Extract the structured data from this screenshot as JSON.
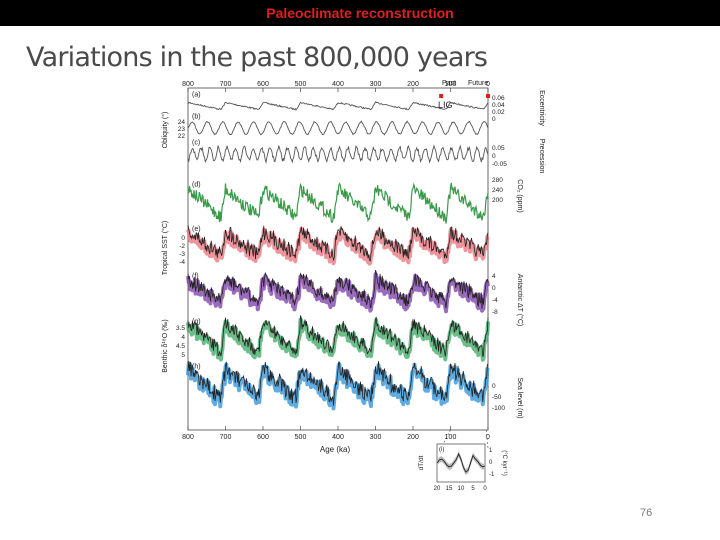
{
  "header": {
    "title": "Paleoclimate reconstruction"
  },
  "slide": {
    "headline": "Variations in the past 800,000 years",
    "number": "76"
  },
  "chart_data": {
    "type": "line",
    "x_axis": {
      "label": "Age (ka)",
      "range": [
        800,
        0
      ],
      "ticks": [
        "800",
        "700",
        "600",
        "500",
        "400",
        "300",
        "200",
        "100",
        "0"
      ]
    },
    "top_annotations": {
      "past": "Past",
      "future": "Future",
      "lig": "LIG"
    },
    "panel_labels": [
      "(a)",
      "(b)",
      "(c)",
      "(d)",
      "(e)",
      "(f)",
      "(g)",
      "(h)"
    ],
    "left_axis_labels": {
      "obliquity": "Obliquity (°)",
      "tropical_sst": "Tropical SST (°C)",
      "benthic": "Benthic δ¹⁸O (‰)"
    },
    "right_axis_labels": {
      "eccentricity": "Eccentricity",
      "precession": "Precession",
      "co2": "CO₂ (ppm)",
      "antarctic": "Antarctic ΔT (°C)",
      "sea_level": "Sea level (m)"
    },
    "left_ticks": {
      "obliquity": [
        "24",
        "23",
        "22"
      ],
      "tropical_sst": [
        "0",
        "-2",
        "-3",
        "-4"
      ],
      "benthic": [
        "3.5",
        "4",
        "4.5",
        "5"
      ]
    },
    "right_ticks": {
      "eccentricity": [
        "0.06",
        "0.04",
        "0.02",
        "0"
      ],
      "precession": [
        "0.05",
        "0",
        "-0.05"
      ],
      "co2": [
        "280",
        "240",
        "200"
      ],
      "antarctic": [
        "4",
        "0",
        "-4",
        "-8"
      ],
      "sea_level": [
        "0",
        "-50",
        "-100"
      ]
    },
    "inset": {
      "label": "(i)",
      "ylabel": "dT/dt",
      "ylabel2": "(°C kyr⁻¹)",
      "xticks": [
        "20",
        "15",
        "10",
        "5",
        "0"
      ],
      "yticks": [
        "1",
        "0",
        "-1"
      ]
    },
    "series": [
      {
        "panel": "(a)",
        "color": "#555555",
        "period": 100,
        "amp": 0.45,
        "noise": 0.05
      },
      {
        "panel": "(b)",
        "color": "#555555",
        "period": 41,
        "amp": 0.8,
        "noise": 0.05
      },
      {
        "panel": "(c)",
        "color": "#555555",
        "period": 23,
        "amp": 0.8,
        "noise": 0.15
      },
      {
        "panel": "(d)",
        "color": "#3a9a4a",
        "period": 100,
        "amp": 1.0,
        "noise": 0.25
      },
      {
        "panel": "(e)",
        "color": "#e8707a",
        "period": 100,
        "amp": 0.9,
        "noise": 0.3
      },
      {
        "panel": "(f)",
        "color": "#7a3aa8",
        "period": 100,
        "amp": 0.9,
        "noise": 0.3
      },
      {
        "panel": "(g)",
        "color": "#3aa860",
        "period": 100,
        "amp": 1.0,
        "noise": 0.25
      },
      {
        "panel": "(h)",
        "color": "#2a90d8",
        "period": 100,
        "amp": 1.0,
        "noise": 0.3
      }
    ]
  }
}
